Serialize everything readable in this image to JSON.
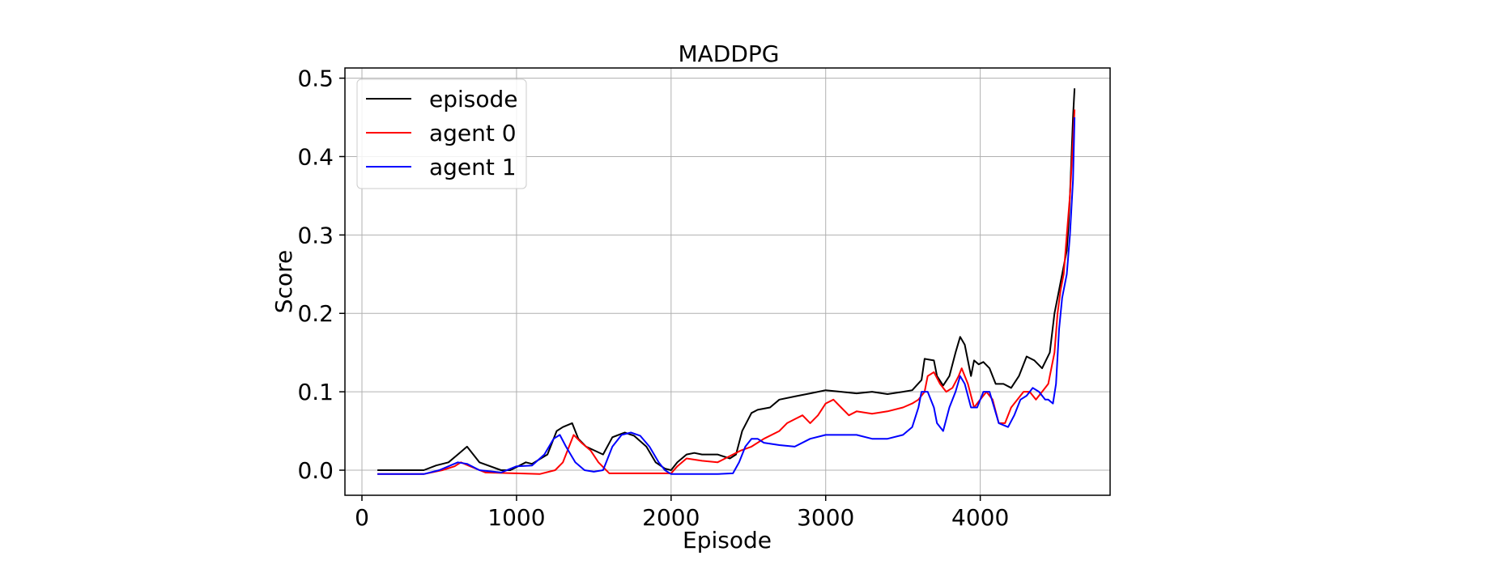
{
  "chart_data": {
    "type": "line",
    "title": "MADDPG",
    "xlabel": "Episode",
    "ylabel": "Score",
    "xlim": [
      -110,
      4840
    ],
    "ylim": [
      -0.032,
      0.513
    ],
    "xticks": [
      0,
      1000,
      2000,
      3000,
      4000
    ],
    "xtick_labels": [
      "0",
      "1000",
      "2000",
      "3000",
      "4000"
    ],
    "yticks": [
      0.0,
      0.1,
      0.2,
      0.3,
      0.4,
      0.5
    ],
    "ytick_labels": [
      "0.0",
      "0.1",
      "0.2",
      "0.3",
      "0.4",
      "0.5"
    ],
    "grid": true,
    "legend_position": "top-left",
    "series": [
      {
        "name": "episode",
        "color": "#000000",
        "x": [
          100,
          400,
          480,
          560,
          620,
          680,
          760,
          900,
          960,
          1060,
          1100,
          1200,
          1260,
          1300,
          1360,
          1400,
          1450,
          1560,
          1620,
          1700,
          1760,
          1840,
          1900,
          1960,
          2000,
          2040,
          2100,
          2150,
          2200,
          2300,
          2380,
          2420,
          2460,
          2520,
          2560,
          2640,
          2700,
          2800,
          2900,
          3000,
          3100,
          3200,
          3300,
          3400,
          3500,
          3560,
          3620,
          3640,
          3700,
          3720,
          3760,
          3800,
          3840,
          3870,
          3900,
          3940,
          3960,
          3990,
          4020,
          4060,
          4100,
          4150,
          4200,
          4250,
          4300,
          4350,
          4400,
          4450,
          4480,
          4500,
          4520,
          4540,
          4560,
          4570,
          4580,
          4590,
          4600,
          4610
        ],
        "values": [
          0.0,
          0.0,
          0.006,
          0.01,
          0.02,
          0.03,
          0.01,
          0.0,
          0.0,
          0.01,
          0.008,
          0.02,
          0.05,
          0.055,
          0.06,
          0.04,
          0.03,
          0.02,
          0.042,
          0.048,
          0.044,
          0.03,
          0.01,
          0.002,
          0.0,
          0.01,
          0.02,
          0.022,
          0.02,
          0.02,
          0.015,
          0.02,
          0.05,
          0.073,
          0.077,
          0.08,
          0.09,
          0.094,
          0.098,
          0.102,
          0.1,
          0.098,
          0.1,
          0.097,
          0.1,
          0.102,
          0.115,
          0.142,
          0.14,
          0.12,
          0.108,
          0.12,
          0.15,
          0.17,
          0.16,
          0.12,
          0.14,
          0.135,
          0.138,
          0.13,
          0.11,
          0.11,
          0.105,
          0.12,
          0.145,
          0.14,
          0.13,
          0.15,
          0.2,
          0.22,
          0.24,
          0.26,
          0.28,
          0.31,
          0.35,
          0.4,
          0.45,
          0.487
        ]
      },
      {
        "name": "agent 0",
        "color": "#ff0000",
        "x": [
          100,
          400,
          520,
          600,
          640,
          700,
          800,
          1000,
          1150,
          1250,
          1300,
          1340,
          1370,
          1420,
          1480,
          1530,
          1600,
          1700,
          1800,
          1900,
          2000,
          2040,
          2100,
          2200,
          2300,
          2400,
          2450,
          2520,
          2600,
          2700,
          2750,
          2800,
          2850,
          2900,
          2950,
          3000,
          3050,
          3100,
          3150,
          3200,
          3300,
          3400,
          3500,
          3560,
          3600,
          3640,
          3660,
          3700,
          3740,
          3780,
          3820,
          3860,
          3880,
          3920,
          3960,
          4000,
          4040,
          4080,
          4120,
          4160,
          4200,
          4240,
          4280,
          4320,
          4360,
          4400,
          4440,
          4480,
          4500,
          4520,
          4540,
          4560,
          4580,
          4600,
          4610
        ],
        "values": [
          -0.005,
          -0.005,
          0.0,
          0.005,
          0.01,
          0.005,
          -0.003,
          -0.004,
          -0.005,
          0.0,
          0.01,
          0.03,
          0.045,
          0.035,
          0.025,
          0.01,
          -0.004,
          -0.004,
          -0.004,
          -0.004,
          -0.004,
          0.005,
          0.015,
          0.012,
          0.01,
          0.02,
          0.025,
          0.03,
          0.04,
          0.05,
          0.06,
          0.065,
          0.07,
          0.06,
          0.07,
          0.085,
          0.09,
          0.08,
          0.07,
          0.075,
          0.072,
          0.075,
          0.08,
          0.085,
          0.09,
          0.1,
          0.12,
          0.125,
          0.11,
          0.1,
          0.105,
          0.12,
          0.13,
          0.11,
          0.08,
          0.09,
          0.1,
          0.09,
          0.06,
          0.06,
          0.08,
          0.09,
          0.1,
          0.1,
          0.09,
          0.1,
          0.11,
          0.15,
          0.2,
          0.23,
          0.25,
          0.3,
          0.35,
          0.42,
          0.46
        ]
      },
      {
        "name": "agent 1",
        "color": "#0000ff",
        "x": [
          100,
          400,
          500,
          560,
          620,
          680,
          760,
          900,
          1000,
          1100,
          1180,
          1240,
          1280,
          1320,
          1380,
          1440,
          1500,
          1560,
          1620,
          1680,
          1740,
          1800,
          1860,
          1920,
          1960,
          2000,
          2060,
          2140,
          2200,
          2300,
          2400,
          2440,
          2480,
          2520,
          2560,
          2600,
          2700,
          2800,
          2900,
          3000,
          3100,
          3200,
          3300,
          3400,
          3500,
          3560,
          3600,
          3620,
          3660,
          3700,
          3720,
          3760,
          3800,
          3840,
          3870,
          3900,
          3940,
          3980,
          4020,
          4060,
          4120,
          4180,
          4220,
          4260,
          4300,
          4340,
          4380,
          4420,
          4440,
          4470,
          4490,
          4510,
          4530,
          4560,
          4580,
          4600,
          4610
        ],
        "values": [
          -0.005,
          -0.005,
          0.0,
          0.005,
          0.01,
          0.008,
          0.0,
          -0.003,
          0.005,
          0.006,
          0.02,
          0.04,
          0.045,
          0.03,
          0.01,
          0.0,
          -0.002,
          0.0,
          0.03,
          0.045,
          0.048,
          0.044,
          0.03,
          0.01,
          0.0,
          -0.005,
          -0.005,
          -0.005,
          -0.005,
          -0.005,
          -0.004,
          0.01,
          0.03,
          0.04,
          0.04,
          0.035,
          0.032,
          0.03,
          0.04,
          0.045,
          0.045,
          0.045,
          0.04,
          0.04,
          0.045,
          0.055,
          0.08,
          0.1,
          0.1,
          0.08,
          0.06,
          0.05,
          0.08,
          0.1,
          0.12,
          0.11,
          0.08,
          0.08,
          0.1,
          0.1,
          0.06,
          0.055,
          0.07,
          0.09,
          0.095,
          0.105,
          0.1,
          0.09,
          0.09,
          0.085,
          0.11,
          0.18,
          0.22,
          0.25,
          0.3,
          0.37,
          0.45
        ]
      }
    ]
  }
}
